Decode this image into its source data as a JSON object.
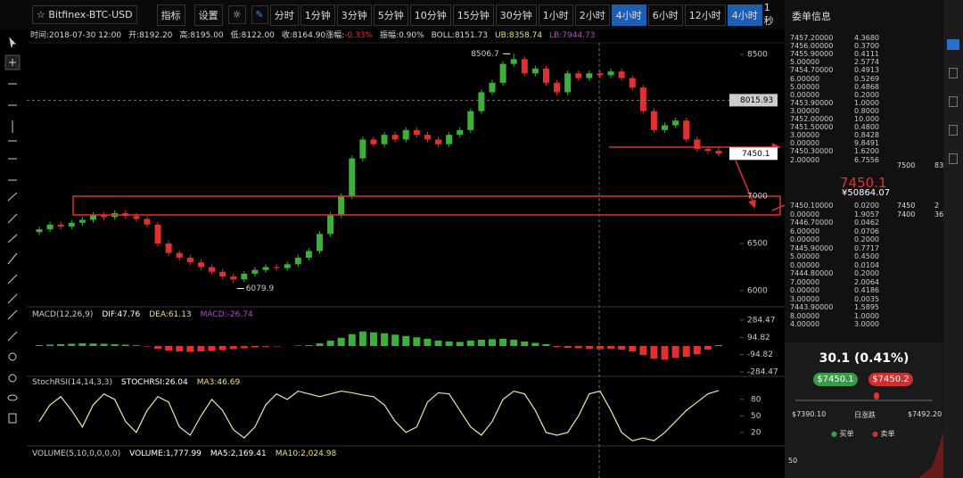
{
  "toolbar": {
    "symbol": "Bitfinex-BTC-USD",
    "indicators": "指标",
    "settings": "设置",
    "periods": [
      "分时",
      "1分钟",
      "3分钟",
      "5分钟",
      "10分钟",
      "15分钟",
      "30分钟",
      "1小时",
      "2小时",
      "4小时",
      "6小时",
      "12小时",
      "4小时"
    ],
    "selected_period": "4小时",
    "refresh": "1秒"
  },
  "info_line": [
    {
      "text": "时间:2018-07-30 12:00",
      "color": "#dddddd"
    },
    {
      "text": "开:8192.20",
      "color": "#dddddd"
    },
    {
      "text": "高:8195.00",
      "color": "#dddddd"
    },
    {
      "text": "低:8122.00",
      "color": "#dddddd"
    },
    {
      "text": "收:8164.90",
      "color": "#dddddd"
    },
    {
      "text": "涨幅:",
      "color": "#dddddd"
    },
    {
      "text": "-0.33%",
      "color": "#e0302f"
    },
    {
      "text": "振幅:0.90%",
      "color": "#dddddd"
    },
    {
      "text": "BOLL:8151.73",
      "color": "#dddddd"
    },
    {
      "text": "UB:8358.74",
      "color": "#e8e07a"
    },
    {
      "text": "LB:7944.73",
      "color": "#b04cc0"
    }
  ],
  "chart_data": {
    "type": "candlestick",
    "ylim": [
      5868,
      8623
    ],
    "yticks": [
      6000,
      6500,
      7000,
      8500
    ],
    "up_color": "#3bb03b",
    "down_color": "#e0302f",
    "candles": [
      [
        6620,
        6680,
        6590,
        6650
      ],
      [
        6650,
        6730,
        6620,
        6700
      ],
      [
        6700,
        6730,
        6650,
        6680
      ],
      [
        6680,
        6750,
        6650,
        6720
      ],
      [
        6720,
        6780,
        6690,
        6750
      ],
      [
        6750,
        6830,
        6720,
        6800
      ],
      [
        6800,
        6830,
        6750,
        6780
      ],
      [
        6780,
        6850,
        6750,
        6820
      ],
      [
        6820,
        6850,
        6760,
        6790
      ],
      [
        6790,
        6820,
        6730,
        6760
      ],
      [
        6760,
        6790,
        6670,
        6700
      ],
      [
        6700,
        6730,
        6470,
        6500
      ],
      [
        6500,
        6530,
        6370,
        6400
      ],
      [
        6400,
        6430,
        6320,
        6350
      ],
      [
        6350,
        6380,
        6270,
        6300
      ],
      [
        6300,
        6330,
        6220,
        6250
      ],
      [
        6250,
        6280,
        6170,
        6200
      ],
      [
        6200,
        6230,
        6120,
        6150
      ],
      [
        6150,
        6180,
        6079.9,
        6120
      ],
      [
        6120,
        6210,
        6090,
        6180
      ],
      [
        6180,
        6250,
        6150,
        6220
      ],
      [
        6220,
        6280,
        6190,
        6250
      ],
      [
        6250,
        6280,
        6210,
        6240
      ],
      [
        6240,
        6310,
        6210,
        6280
      ],
      [
        6280,
        6380,
        6250,
        6350
      ],
      [
        6350,
        6450,
        6320,
        6420
      ],
      [
        6420,
        6630,
        6390,
        6600
      ],
      [
        6600,
        6830,
        6570,
        6800
      ],
      [
        6800,
        7030,
        6770,
        7000
      ],
      [
        7000,
        7430,
        6970,
        7400
      ],
      [
        7400,
        7630,
        7370,
        7600
      ],
      [
        7600,
        7630,
        7520,
        7550
      ],
      [
        7550,
        7680,
        7520,
        7650
      ],
      [
        7650,
        7680,
        7570,
        7600
      ],
      [
        7600,
        7730,
        7570,
        7700
      ],
      [
        7700,
        7730,
        7620,
        7650
      ],
      [
        7650,
        7680,
        7570,
        7600
      ],
      [
        7600,
        7630,
        7520,
        7550
      ],
      [
        7550,
        7680,
        7520,
        7650
      ],
      [
        7650,
        7730,
        7620,
        7700
      ],
      [
        7700,
        7930,
        7670,
        7900
      ],
      [
        7900,
        8130,
        7870,
        8100
      ],
      [
        8100,
        8230,
        8070,
        8200
      ],
      [
        8200,
        8430,
        8170,
        8400
      ],
      [
        8400,
        8506.7,
        8370,
        8450
      ],
      [
        8450,
        8480,
        8270,
        8300
      ],
      [
        8300,
        8380,
        8270,
        8350
      ],
      [
        8350,
        8380,
        8170,
        8200
      ],
      [
        8200,
        8230,
        8070,
        8100
      ],
      [
        8100,
        8330,
        8070,
        8300
      ],
      [
        8300,
        8330,
        8220,
        8250
      ],
      [
        8250,
        8330,
        8220,
        8300
      ],
      [
        8300,
        8330,
        8250,
        8280
      ],
      [
        8280,
        8350,
        8250,
        8320
      ],
      [
        8320,
        8350,
        8220,
        8250
      ],
      [
        8250,
        8280,
        8120,
        8150
      ],
      [
        8150,
        8180,
        7870,
        7900
      ],
      [
        7900,
        7930,
        7670,
        7700
      ],
      [
        7700,
        7780,
        7670,
        7750
      ],
      [
        7750,
        7830,
        7720,
        7800
      ],
      [
        7800,
        7830,
        7570,
        7600
      ],
      [
        7600,
        7630,
        7470,
        7500
      ],
      [
        7500,
        7530,
        7450,
        7480
      ],
      [
        7480,
        7510,
        7420,
        7450.1
      ]
    ],
    "high_label": 8506.7,
    "low_label": 6079.9,
    "reference_price": 8015.93,
    "last_price": 7450.1,
    "macd": {
      "title": "MACD(12,26,9)",
      "dif": "DIF:47.76",
      "dea": "DEA:61.13",
      "value": "MACD:-26.74",
      "ylim": [
        -392,
        392
      ],
      "yticks": [
        284.47,
        94.82,
        -94.82,
        -284.47
      ],
      "values": [
        10,
        15,
        20,
        25,
        30,
        28,
        25,
        20,
        15,
        8,
        -5,
        -30,
        -50,
        -60,
        -65,
        -60,
        -55,
        -45,
        -35,
        -25,
        -15,
        -8,
        -5,
        0,
        5,
        10,
        30,
        60,
        90,
        130,
        160,
        150,
        140,
        125,
        110,
        95,
        80,
        60,
        50,
        45,
        60,
        70,
        75,
        80,
        70,
        50,
        35,
        20,
        -10,
        -20,
        -25,
        -30,
        -35,
        -30,
        -40,
        -60,
        -100,
        -140,
        -150,
        -130,
        -120,
        -90,
        -40,
        10
      ]
    },
    "stoch": {
      "title": "StochRSI(14,14,3,3)",
      "k": "STOCHRSI:26.04",
      "ma": "MA3:46.69",
      "ylim": [
        -4.4,
        117
      ],
      "yticks": [
        80,
        50,
        20
      ],
      "values": [
        40,
        70,
        85,
        60,
        30,
        70,
        90,
        80,
        40,
        20,
        60,
        85,
        75,
        30,
        15,
        50,
        80,
        60,
        25,
        10,
        30,
        70,
        90,
        80,
        95,
        90,
        85,
        90,
        95,
        92,
        88,
        85,
        70,
        40,
        20,
        30,
        75,
        92,
        90,
        60,
        30,
        15,
        40,
        80,
        95,
        90,
        60,
        20,
        15,
        20,
        50,
        90,
        95,
        60,
        20,
        5,
        10,
        5,
        20,
        40,
        60,
        75,
        90,
        96
      ]
    },
    "volume": {
      "title": "VOLUME(5,10,0,0,0,0)",
      "v": "VOLUME:1,777.99",
      "ma5": "MA5:2,169.41",
      "ma10": "MA10:2,024.98"
    }
  },
  "order_book": {
    "title": "委单信息",
    "asks": [
      [
        "7457.20000",
        "4.3680"
      ],
      [
        "7456.00000",
        "0.3700"
      ],
      [
        "7455.90000",
        "0.4111"
      ],
      [
        "5.00000",
        "2.5774"
      ],
      [
        "7454.70000",
        "0.4913"
      ],
      [
        "6.00000",
        "0.5269"
      ],
      [
        "5.00000",
        "0.4868"
      ],
      [
        "0.00000",
        "0.2000"
      ],
      [
        "7453.90000",
        "1.0000"
      ],
      [
        "3.00000",
        "0.8000"
      ],
      [
        "7452.00000",
        "10.000"
      ],
      [
        "7451.50000",
        "0.4800"
      ],
      [
        "3.00000",
        "0.8428"
      ],
      [
        "0.00000",
        "9.8491"
      ],
      [
        "7450.30000",
        "1.6200"
      ],
      [
        "2.00000",
        "6.7556"
      ]
    ],
    "bids": [
      [
        "7450.10000",
        "0.0200"
      ],
      [
        "0.00000",
        "1.9057"
      ],
      [
        "7446.70000",
        "0.0462"
      ],
      [
        "6.00000",
        "0.0706"
      ],
      [
        "0.00000",
        "0.2000"
      ],
      [
        "7445.90000",
        "0.7717"
      ],
      [
        "5.00000",
        "0.4500"
      ],
      [
        "0.00000",
        "0.0104"
      ],
      [
        "7444.80000",
        "0.2000"
      ],
      [
        "7.00000",
        "2.0064"
      ],
      [
        "0.00000",
        "0.4186"
      ],
      [
        "3.00000",
        "0.0035"
      ],
      [
        "7443.90000",
        "1.5895"
      ],
      [
        "8.00000",
        "1.0000"
      ],
      [
        "4.00000",
        "3.0000"
      ]
    ],
    "depth_ask": [
      [
        "7500",
        "83"
      ]
    ],
    "depth_bid": [
      [
        "7450",
        "2"
      ],
      [
        "7400",
        "36"
      ]
    ],
    "mid_price": "7450.1",
    "mid_cny": "¥50864.07"
  },
  "ticker": {
    "change": "30.1 (0.41%)",
    "bid_button": "$7450.1",
    "ask_button": "$7450.2",
    "low": "$7390.10",
    "range_label": "日涨跌",
    "high": "$7492.20",
    "legend_buy": "买单",
    "legend_sell": "卖单",
    "depth_tick": "50"
  }
}
